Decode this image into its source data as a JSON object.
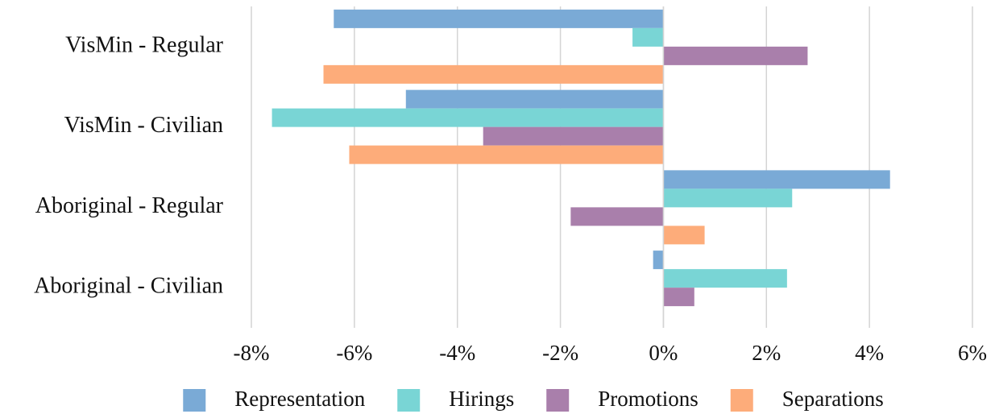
{
  "chart_data": {
    "type": "barh",
    "categories": [
      "VisMin - Regular",
      "VisMin - Civilian",
      "Aboriginal - Regular",
      "Aboriginal - Civilian"
    ],
    "series": [
      {
        "name": "Representation",
        "color": "#7aaad6",
        "values": [
          -6.4,
          -5.0,
          4.4,
          -0.2
        ]
      },
      {
        "name": "Hirings",
        "color": "#79d5d5",
        "values": [
          -0.6,
          -7.6,
          2.5,
          2.4
        ]
      },
      {
        "name": "Promotions",
        "color": "#a97fab",
        "values": [
          2.8,
          -3.5,
          -1.8,
          0.6
        ]
      },
      {
        "name": "Separations",
        "color": "#fdac7a",
        "values": [
          -6.6,
          -6.1,
          0.8,
          0
        ]
      }
    ],
    "xlim": [
      -8,
      6
    ],
    "xticks": [
      {
        "value": -8,
        "label": "-8%"
      },
      {
        "value": -6,
        "label": "-6%"
      },
      {
        "value": -4,
        "label": "-4%"
      },
      {
        "value": -2,
        "label": "-2%"
      },
      {
        "value": 0,
        "label": "0%"
      },
      {
        "value": 2,
        "label": "2%"
      },
      {
        "value": 4,
        "label": "4%"
      },
      {
        "value": 6,
        "label": "6%"
      }
    ],
    "grid": true,
    "legend": "bottom"
  }
}
